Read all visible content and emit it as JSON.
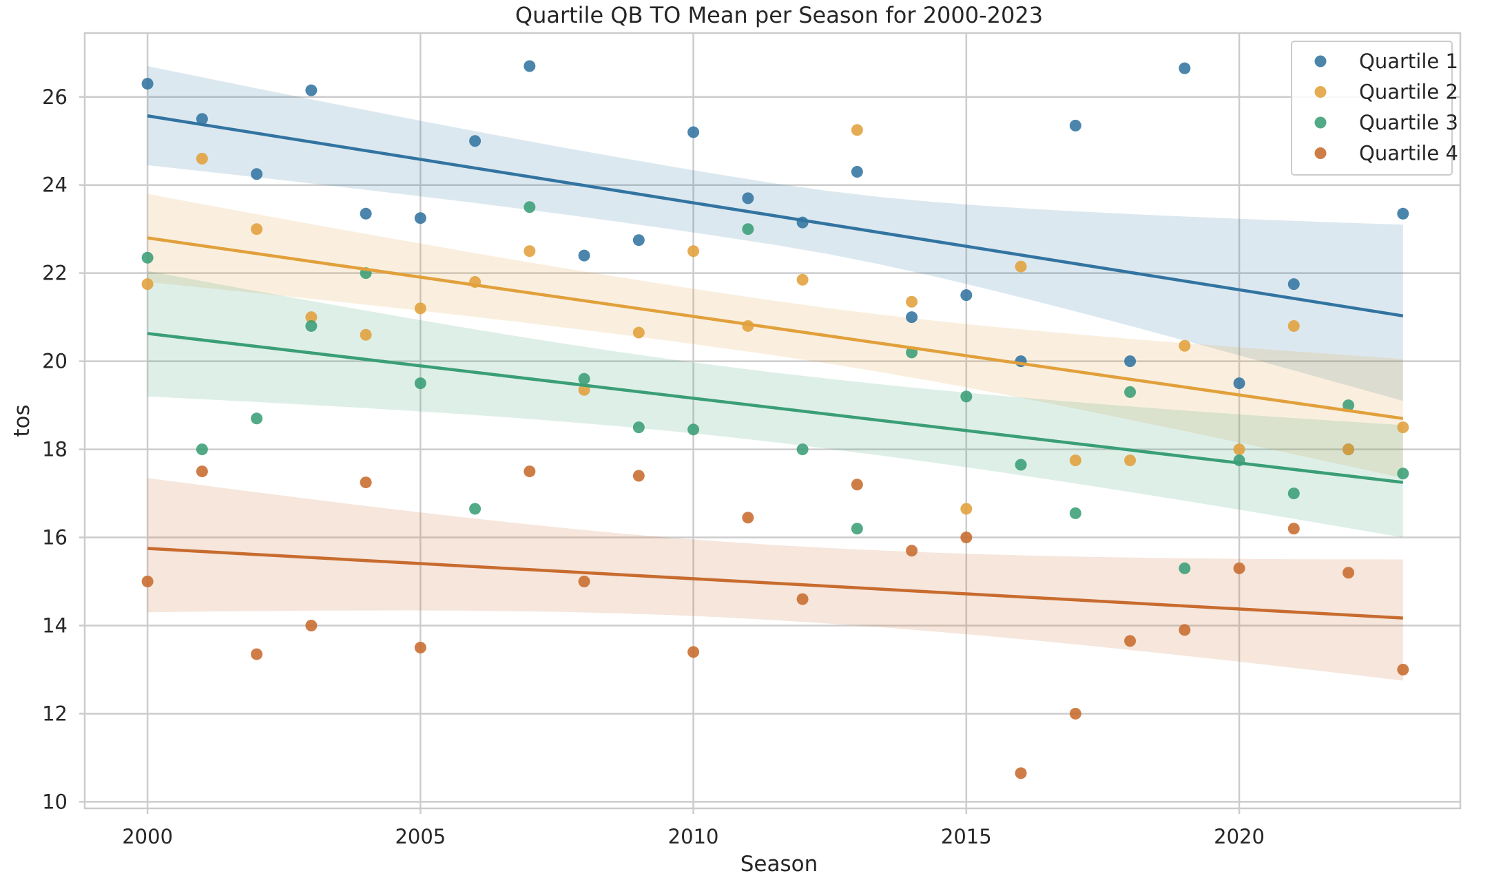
{
  "chart_data": {
    "type": "scatter",
    "title": "Quartile QB TO Mean per Season for 2000-2023",
    "xlabel": "Season",
    "ylabel": "tos",
    "xlim": [
      1998.85,
      2024.05
    ],
    "ylim": [
      9.85,
      27.45
    ],
    "xticks": [
      2000,
      2005,
      2010,
      2015,
      2020
    ],
    "yticks": [
      10,
      12,
      14,
      16,
      18,
      20,
      22,
      24,
      26
    ],
    "grid": true,
    "legend_position": "top-right",
    "x": [
      2000,
      2001,
      2002,
      2003,
      2004,
      2005,
      2006,
      2007,
      2008,
      2009,
      2010,
      2011,
      2012,
      2013,
      2014,
      2015,
      2016,
      2017,
      2018,
      2019,
      2020,
      2021,
      2022,
      2023
    ],
    "series": [
      {
        "name": "Quartile 1",
        "color": "#3274a1",
        "values": [
          26.3,
          25.5,
          24.25,
          26.15,
          23.35,
          23.25,
          25.0,
          26.7,
          22.4,
          22.75,
          25.2,
          23.7,
          23.15,
          24.3,
          21.0,
          21.5,
          20.0,
          25.35,
          20.0,
          26.65,
          19.5,
          21.75,
          18.0,
          23.35
        ],
        "fit": [
          25.57,
          21.03
        ],
        "band_upper": [
          26.7,
          23.1
        ],
        "band_lower": [
          24.45,
          19.1
        ]
      },
      {
        "name": "Quartile 2",
        "color": "#e1a03b",
        "values": [
          21.75,
          24.6,
          23.0,
          21.0,
          20.6,
          21.2,
          21.8,
          22.5,
          19.35,
          20.65,
          22.5,
          20.8,
          21.85,
          25.25,
          21.35,
          16.65,
          22.15,
          17.75,
          17.75,
          20.35,
          18.0,
          20.8,
          18.0,
          18.5
        ],
        "fit": [
          22.8,
          18.7
        ],
        "band_upper": [
          23.8,
          20.05
        ],
        "band_lower": [
          21.8,
          17.35
        ]
      },
      {
        "name": "Quartile 3",
        "color": "#3a9e76",
        "values": [
          22.35,
          18.0,
          18.7,
          20.8,
          22.0,
          19.5,
          16.65,
          23.5,
          19.6,
          18.5,
          18.45,
          23.0,
          18.0,
          16.2,
          20.2,
          19.2,
          17.65,
          16.55,
          19.3,
          15.3,
          17.75,
          17.0,
          19.0,
          17.45
        ],
        "fit": [
          20.63,
          17.25
        ],
        "band_upper": [
          22.05,
          18.55
        ],
        "band_lower": [
          19.2,
          16.0
        ]
      },
      {
        "name": "Quartile 4",
        "color": "#c86b2e",
        "values": [
          15.0,
          17.5,
          13.35,
          14.0,
          17.25,
          13.5,
          null,
          17.5,
          15.0,
          17.4,
          13.4,
          16.45,
          14.6,
          17.2,
          15.7,
          16.0,
          10.65,
          12.0,
          13.65,
          13.9,
          15.3,
          16.2,
          15.2,
          13.0
        ],
        "fit": [
          15.75,
          14.17
        ],
        "band_upper": [
          17.35,
          15.5
        ],
        "band_lower": [
          14.3,
          12.75
        ]
      }
    ]
  }
}
